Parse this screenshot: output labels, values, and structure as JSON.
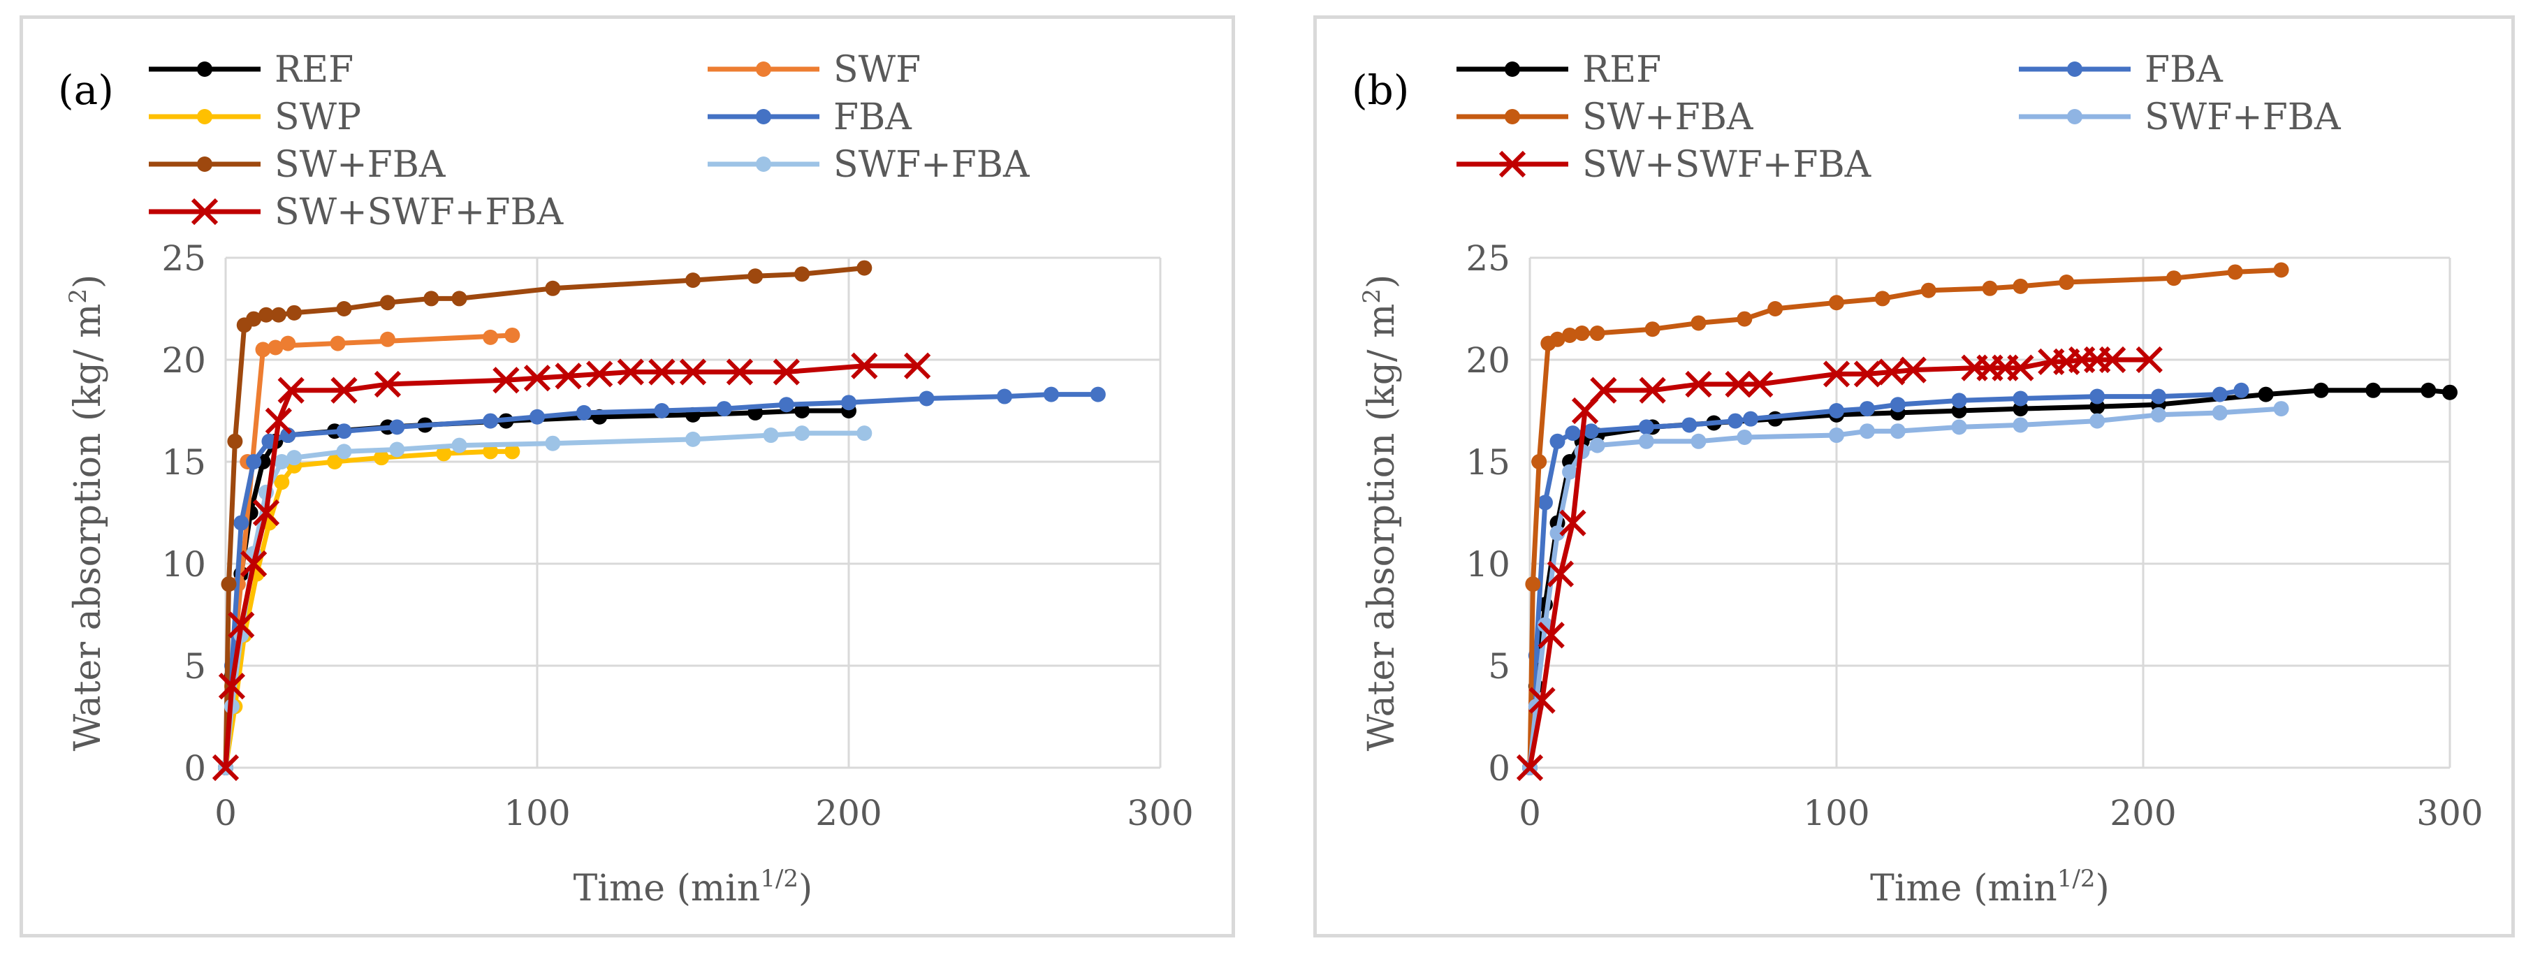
{
  "chart_data": [
    {
      "type": "line",
      "panel_label": "(a)",
      "xlabel": "Time (min",
      "xlabel_sup": "1/2",
      "xlabel_tail": ")",
      "ylabel": "Water absorption  (kg/ m",
      "ylabel_sup": "2",
      "ylabel_tail": ")",
      "xlim": [
        0,
        300
      ],
      "ylim": [
        0,
        25
      ],
      "xticks": [
        0,
        100,
        200,
        300
      ],
      "yticks": [
        0,
        5,
        10,
        15,
        20,
        25
      ],
      "grid": true,
      "legend_position": "top",
      "series": [
        {
          "name": "REF",
          "color": "#000000",
          "marker": "dot",
          "x": [
            0,
            2,
            5,
            8,
            12,
            16,
            20,
            35,
            52,
            64,
            90,
            120,
            150,
            170,
            185,
            200
          ],
          "y": [
            0,
            4.5,
            9.5,
            12.5,
            15.0,
            16.0,
            16.3,
            16.5,
            16.7,
            16.8,
            17.0,
            17.2,
            17.3,
            17.4,
            17.5,
            17.5
          ]
        },
        {
          "name": "SWF",
          "color": "#ed7d31",
          "marker": "dot",
          "x": [
            0,
            2,
            4,
            7,
            12,
            16,
            20,
            36,
            52,
            85,
            92
          ],
          "y": [
            0,
            4.0,
            9.0,
            15.0,
            20.5,
            20.6,
            20.8,
            20.8,
            21.0,
            21.1,
            21.2
          ],
          "line_x": [
            0,
            3,
            8,
            12,
            20,
            50,
            92
          ],
          "line_y": [
            0,
            6,
            14,
            20.5,
            20.7,
            20.9,
            21.2
          ]
        },
        {
          "name": "SWP",
          "color": "#ffc000",
          "marker": "dot",
          "x": [
            0,
            3,
            6,
            10,
            14,
            18,
            22,
            35,
            50,
            70,
            85,
            92
          ],
          "y": [
            0,
            3.0,
            6.5,
            9.5,
            12.0,
            14.0,
            14.8,
            15.0,
            15.2,
            15.4,
            15.5,
            15.5
          ]
        },
        {
          "name": "FBA",
          "color": "#4472c4",
          "marker": "dot",
          "x": [
            0,
            2,
            5,
            9,
            14,
            20,
            38,
            55,
            85,
            100,
            115,
            140,
            160,
            180,
            200,
            225,
            250,
            265,
            280
          ],
          "y": [
            0,
            5.0,
            12.0,
            15.0,
            16.0,
            16.3,
            16.5,
            16.7,
            17.0,
            17.2,
            17.4,
            17.5,
            17.6,
            17.8,
            17.9,
            18.1,
            18.2,
            18.3,
            18.3
          ]
        },
        {
          "name": "SW+FBA",
          "color": "#9e480e",
          "marker": "dot",
          "x": [
            0,
            1,
            3,
            6,
            9,
            13,
            17,
            22,
            38,
            52,
            66,
            75,
            105,
            150,
            170,
            185,
            205
          ],
          "y": [
            0,
            9.0,
            16.0,
            21.7,
            22.0,
            22.2,
            22.2,
            22.3,
            22.5,
            22.8,
            23.0,
            23.0,
            23.5,
            23.9,
            24.1,
            24.2,
            24.5
          ]
        },
        {
          "name": "SWF+FBA",
          "color": "#9dc3e6",
          "marker": "dot",
          "x": [
            0,
            2,
            5,
            9,
            13,
            18,
            22,
            38,
            55,
            75,
            105,
            150,
            175,
            185,
            205
          ],
          "y": [
            0,
            3.0,
            6.5,
            10.5,
            13.5,
            15.0,
            15.2,
            15.5,
            15.6,
            15.8,
            15.9,
            16.1,
            16.3,
            16.4,
            16.4
          ]
        },
        {
          "name": "SW+SWF+FBA",
          "color": "#c00000",
          "marker": "x",
          "x": [
            0,
            2,
            5,
            9,
            13,
            17,
            21,
            38,
            52,
            90,
            100,
            110,
            120,
            130,
            140,
            150,
            165,
            180,
            205,
            222
          ],
          "y": [
            0,
            4.0,
            7.0,
            10.0,
            12.5,
            17.0,
            18.5,
            18.5,
            18.8,
            19.0,
            19.1,
            19.2,
            19.3,
            19.4,
            19.4,
            19.4,
            19.4,
            19.4,
            19.7,
            19.7
          ]
        }
      ]
    },
    {
      "type": "line",
      "panel_label": "(b)",
      "xlabel": "Time (min",
      "xlabel_sup": "1/2",
      "xlabel_tail": ")",
      "ylabel": "Water absorption  (kg/ m",
      "ylabel_sup": "2",
      "ylabel_tail": ")",
      "xlim": [
        0,
        300
      ],
      "ylim": [
        0,
        25
      ],
      "xticks": [
        0,
        100,
        200,
        300
      ],
      "yticks": [
        0,
        5,
        10,
        15,
        20,
        25
      ],
      "grid": true,
      "legend_position": "top",
      "series": [
        {
          "name": "REF",
          "color": "#000000",
          "marker": "dot",
          "x": [
            0,
            2,
            5,
            9,
            13,
            17,
            22,
            40,
            60,
            80,
            100,
            120,
            140,
            160,
            185,
            205,
            240,
            258,
            275,
            293,
            300
          ],
          "y": [
            0,
            4.0,
            8.0,
            12.0,
            15.0,
            16.0,
            16.3,
            16.7,
            16.9,
            17.1,
            17.3,
            17.4,
            17.5,
            17.6,
            17.7,
            17.8,
            18.3,
            18.5,
            18.5,
            18.5,
            18.4
          ]
        },
        {
          "name": "FBA",
          "color": "#4472c4",
          "marker": "dot",
          "x": [
            0,
            2,
            5,
            9,
            14,
            20,
            38,
            52,
            67,
            72,
            100,
            110,
            120,
            140,
            160,
            185,
            205,
            225,
            232
          ],
          "y": [
            0,
            5.5,
            13.0,
            16.0,
            16.4,
            16.5,
            16.7,
            16.8,
            17.0,
            17.1,
            17.5,
            17.6,
            17.8,
            18.0,
            18.1,
            18.2,
            18.2,
            18.3,
            18.5
          ]
        },
        {
          "name": "SW+FBA",
          "color": "#c55a11",
          "marker": "dot",
          "x": [
            0,
            1,
            3,
            6,
            9,
            13,
            17,
            22,
            40,
            55,
            70,
            80,
            100,
            115,
            130,
            150,
            160,
            175,
            210,
            230,
            245
          ],
          "y": [
            0,
            9.0,
            15.0,
            20.8,
            21.0,
            21.2,
            21.3,
            21.3,
            21.5,
            21.8,
            22.0,
            22.5,
            22.8,
            23.0,
            23.4,
            23.5,
            23.6,
            23.8,
            24.0,
            24.3,
            24.4
          ]
        },
        {
          "name": "SWF+FBA",
          "color": "#8fb4e3",
          "marker": "dot",
          "x": [
            0,
            2,
            5,
            9,
            13,
            17,
            22,
            38,
            55,
            70,
            100,
            110,
            120,
            140,
            160,
            185,
            205,
            225,
            245
          ],
          "y": [
            0,
            3.0,
            7.0,
            11.5,
            14.5,
            15.5,
            15.8,
            16.0,
            16.0,
            16.2,
            16.3,
            16.5,
            16.5,
            16.7,
            16.8,
            17.0,
            17.3,
            17.4,
            17.6
          ]
        },
        {
          "name": "SW+SWF+FBA",
          "color": "#c00000",
          "marker": "x",
          "x": [
            0,
            4,
            7,
            10,
            14,
            18,
            24,
            40,
            55,
            68,
            75,
            100,
            110,
            118,
            125,
            145,
            150,
            155,
            160,
            170,
            175,
            180,
            185,
            190,
            202
          ],
          "y": [
            0,
            3.3,
            6.5,
            9.5,
            12.0,
            17.5,
            18.5,
            18.5,
            18.8,
            18.8,
            18.8,
            19.3,
            19.3,
            19.4,
            19.5,
            19.6,
            19.6,
            19.6,
            19.6,
            19.9,
            19.9,
            20.0,
            20.0,
            20.0,
            20.0
          ]
        }
      ]
    }
  ]
}
